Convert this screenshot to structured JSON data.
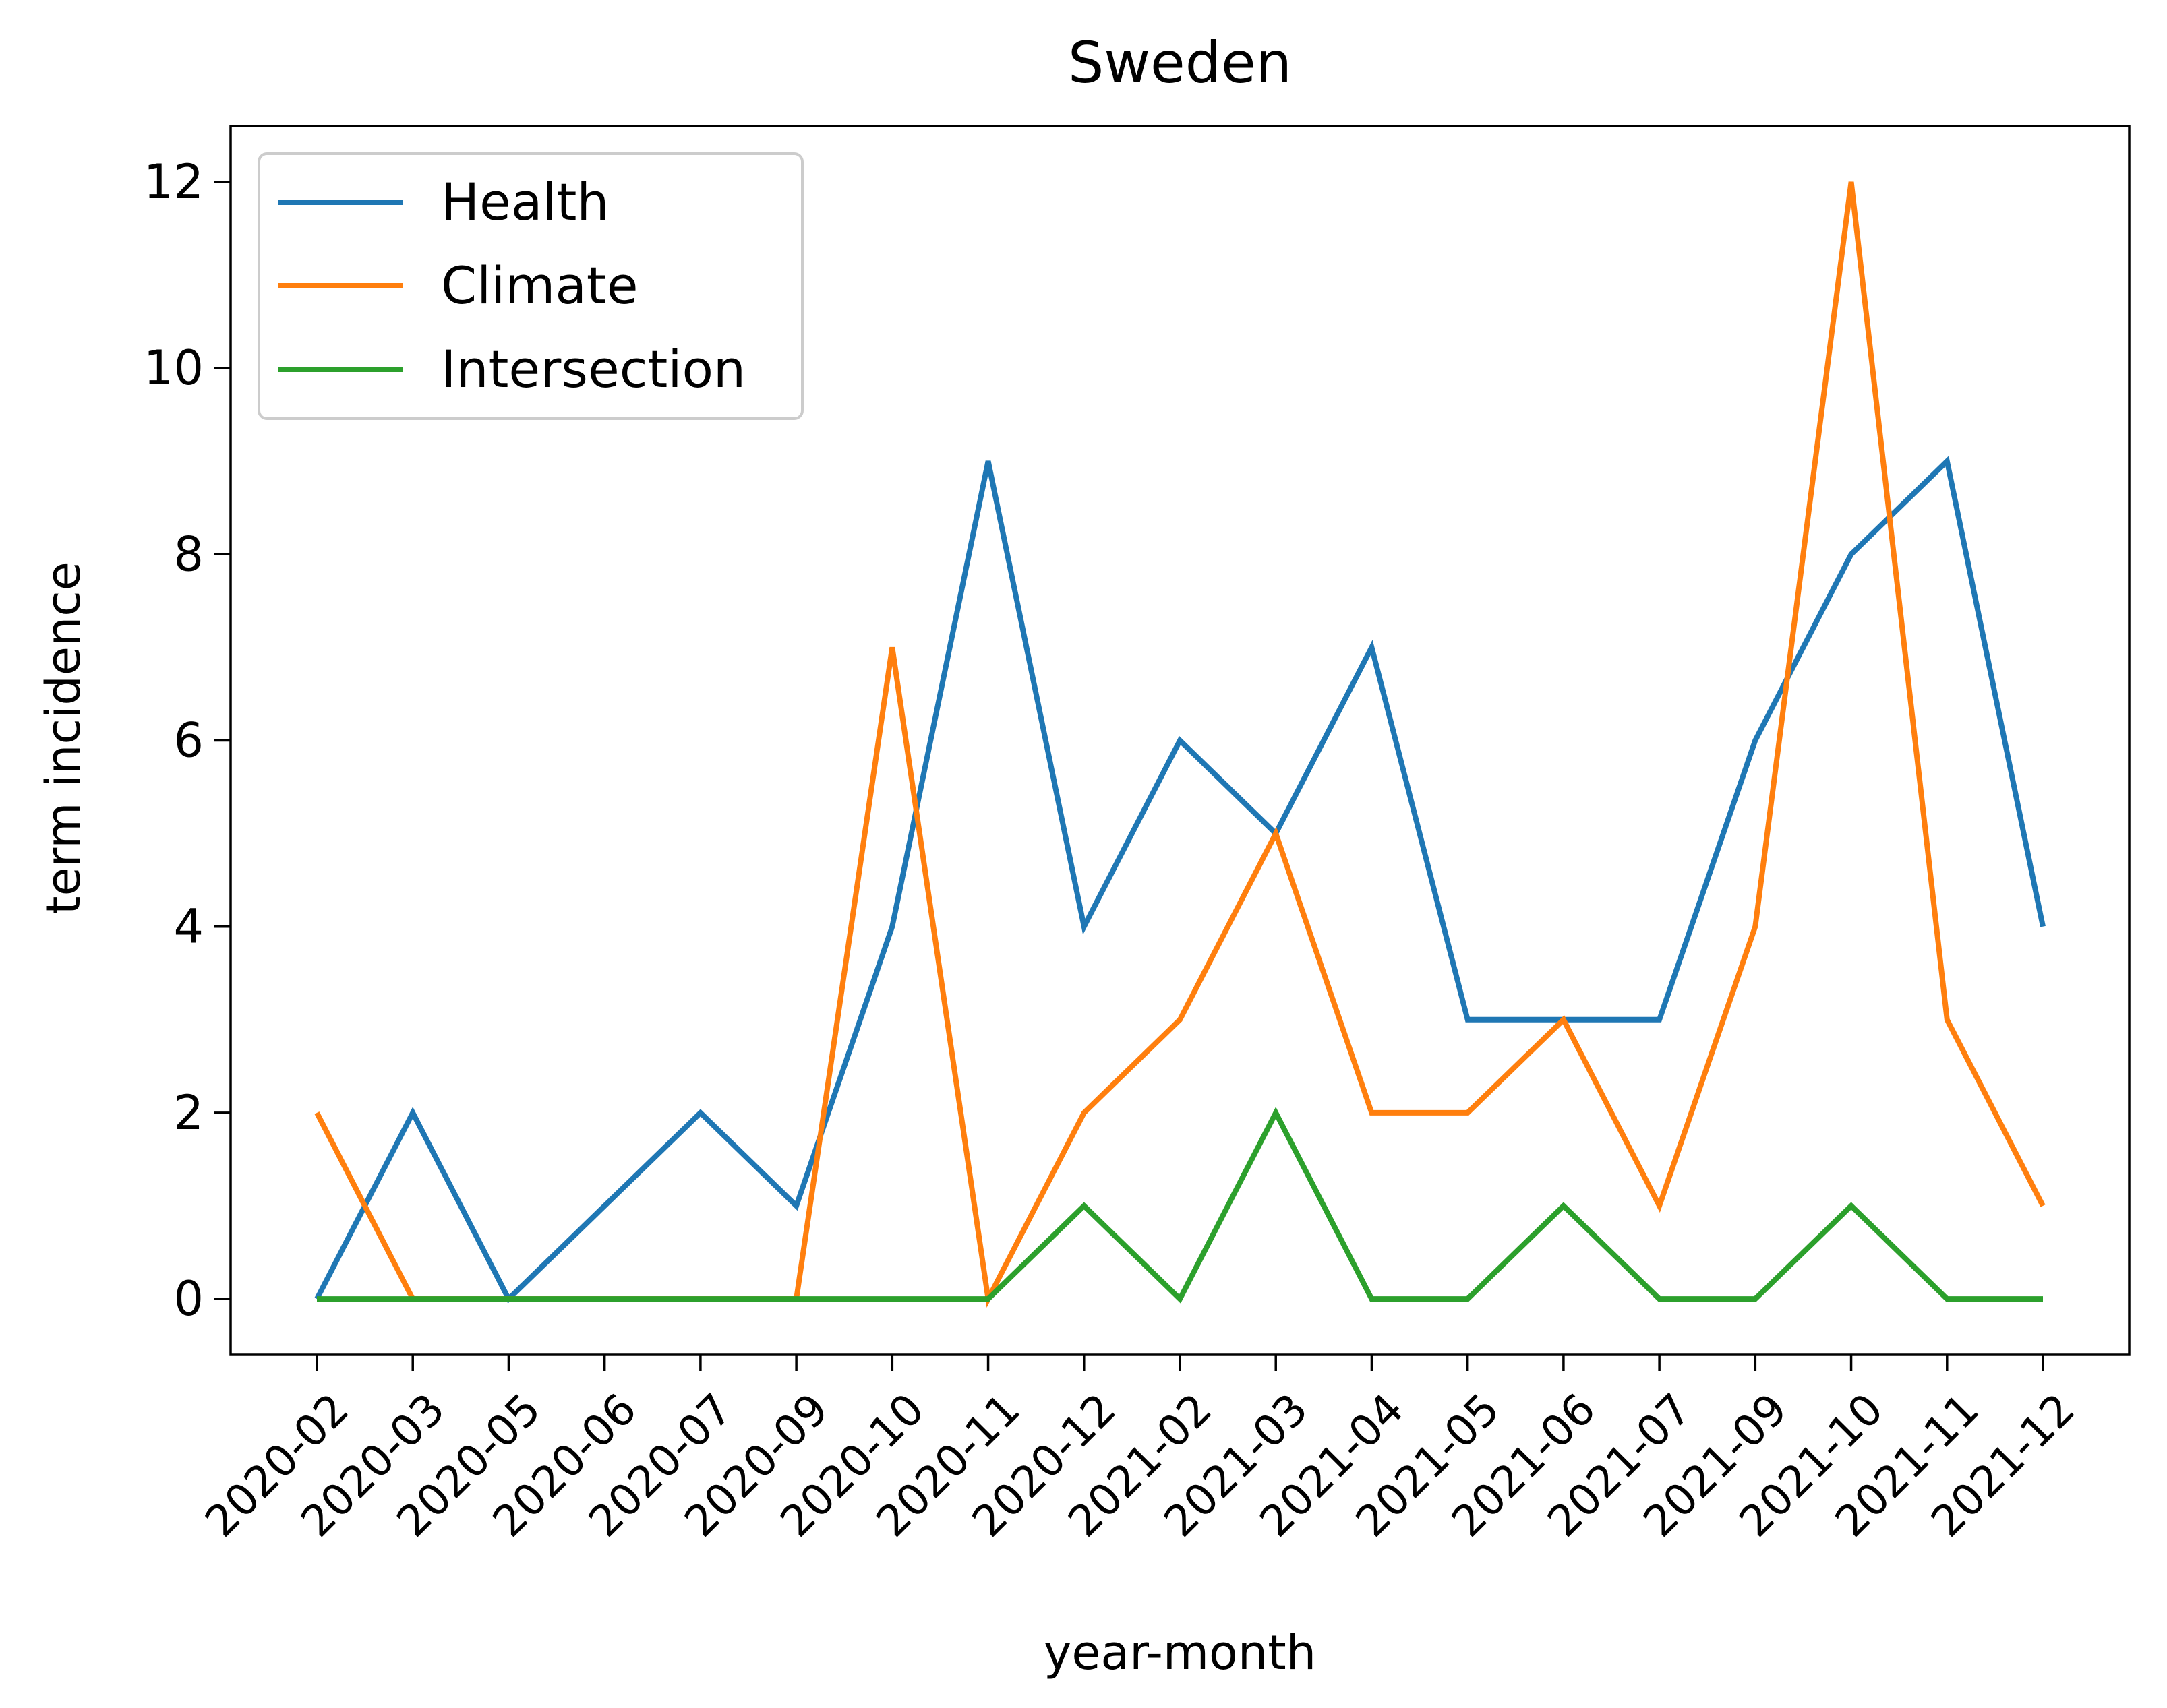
{
  "chart_data": {
    "type": "line",
    "title": "Sweden",
    "xlabel": "year-month",
    "ylabel": "term incidence",
    "categories": [
      "2020-02",
      "2020-03",
      "2020-05",
      "2020-06",
      "2020-07",
      "2020-09",
      "2020-10",
      "2020-11",
      "2020-12",
      "2021-02",
      "2021-03",
      "2021-04",
      "2021-05",
      "2021-06",
      "2021-07",
      "2021-09",
      "2021-10",
      "2021-11",
      "2021-12"
    ],
    "ylim": [
      -0.6,
      12.6
    ],
    "yticks": [
      0,
      2,
      4,
      6,
      8,
      10,
      12
    ],
    "grid": false,
    "legend_position": "upper-left",
    "series": [
      {
        "name": "Health",
        "color": "#1f77b4",
        "values": [
          0,
          2,
          0,
          1,
          2,
          1,
          4,
          9,
          4,
          6,
          5,
          7,
          3,
          3,
          3,
          6,
          8,
          9,
          4
        ]
      },
      {
        "name": "Climate",
        "color": "#ff7f0e",
        "values": [
          2,
          0,
          0,
          0,
          0,
          0,
          7,
          0,
          2,
          3,
          5,
          2,
          2,
          3,
          1,
          4,
          12,
          3,
          1
        ]
      },
      {
        "name": "Intersection",
        "color": "#2ca02c",
        "values": [
          0,
          0,
          0,
          0,
          0,
          0,
          0,
          0,
          1,
          0,
          2,
          0,
          0,
          1,
          0,
          0,
          1,
          0,
          0
        ]
      }
    ]
  }
}
